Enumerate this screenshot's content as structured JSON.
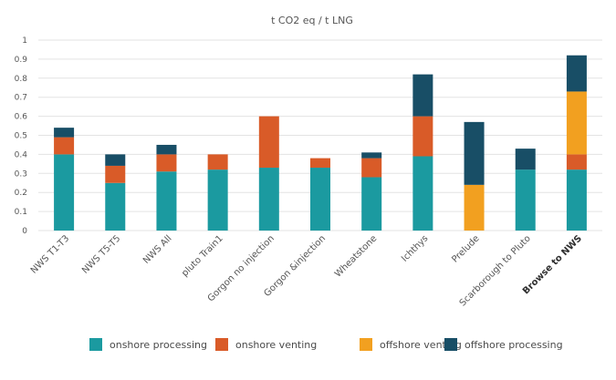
{
  "chart_data": {
    "type": "bar",
    "stacked": true,
    "title": "t CO2 eq / t LNG",
    "xlabel": "",
    "ylabel": "",
    "ylim": [
      0,
      1
    ],
    "yticks": [
      "0",
      "0.1",
      "0.2",
      "0.3",
      "0.4",
      "0.5",
      "0.6",
      "0.7",
      "0.8",
      "0.9",
      "1"
    ],
    "grid": true,
    "legend_position": "bottom",
    "categories": [
      "NWS T1-T3",
      "NWS T5-T5",
      "NWS All",
      "pluto Train1",
      "Gorgon no injection",
      "Gorgon &injection",
      "Wheatstone",
      "Ichthys",
      "Prelude",
      "Scarborough to Pluto",
      "Browse to NWS"
    ],
    "bold_categories": [
      "Browse to NWS"
    ],
    "series": [
      {
        "name": "onshore processing",
        "color": "#1B9AA0",
        "values": [
          0.4,
          0.25,
          0.31,
          0.32,
          0.33,
          0.33,
          0.28,
          0.39,
          0,
          0.32,
          0.32
        ]
      },
      {
        "name": "onshore venting",
        "color": "#D95B28",
        "values": [
          0.09,
          0.09,
          0.09,
          0.08,
          0.27,
          0.05,
          0.1,
          0.21,
          0,
          0,
          0.08
        ]
      },
      {
        "name": "offshore venting",
        "color": "#F2A020",
        "values": [
          0,
          0,
          0,
          0,
          0,
          0,
          0,
          0,
          0.24,
          0,
          0.33
        ]
      },
      {
        "name": "offshore processing",
        "color": "#184E66",
        "values": [
          0.05,
          0.06,
          0.05,
          0,
          0,
          0,
          0.03,
          0.22,
          0.33,
          0.11,
          0.19
        ]
      }
    ]
  }
}
